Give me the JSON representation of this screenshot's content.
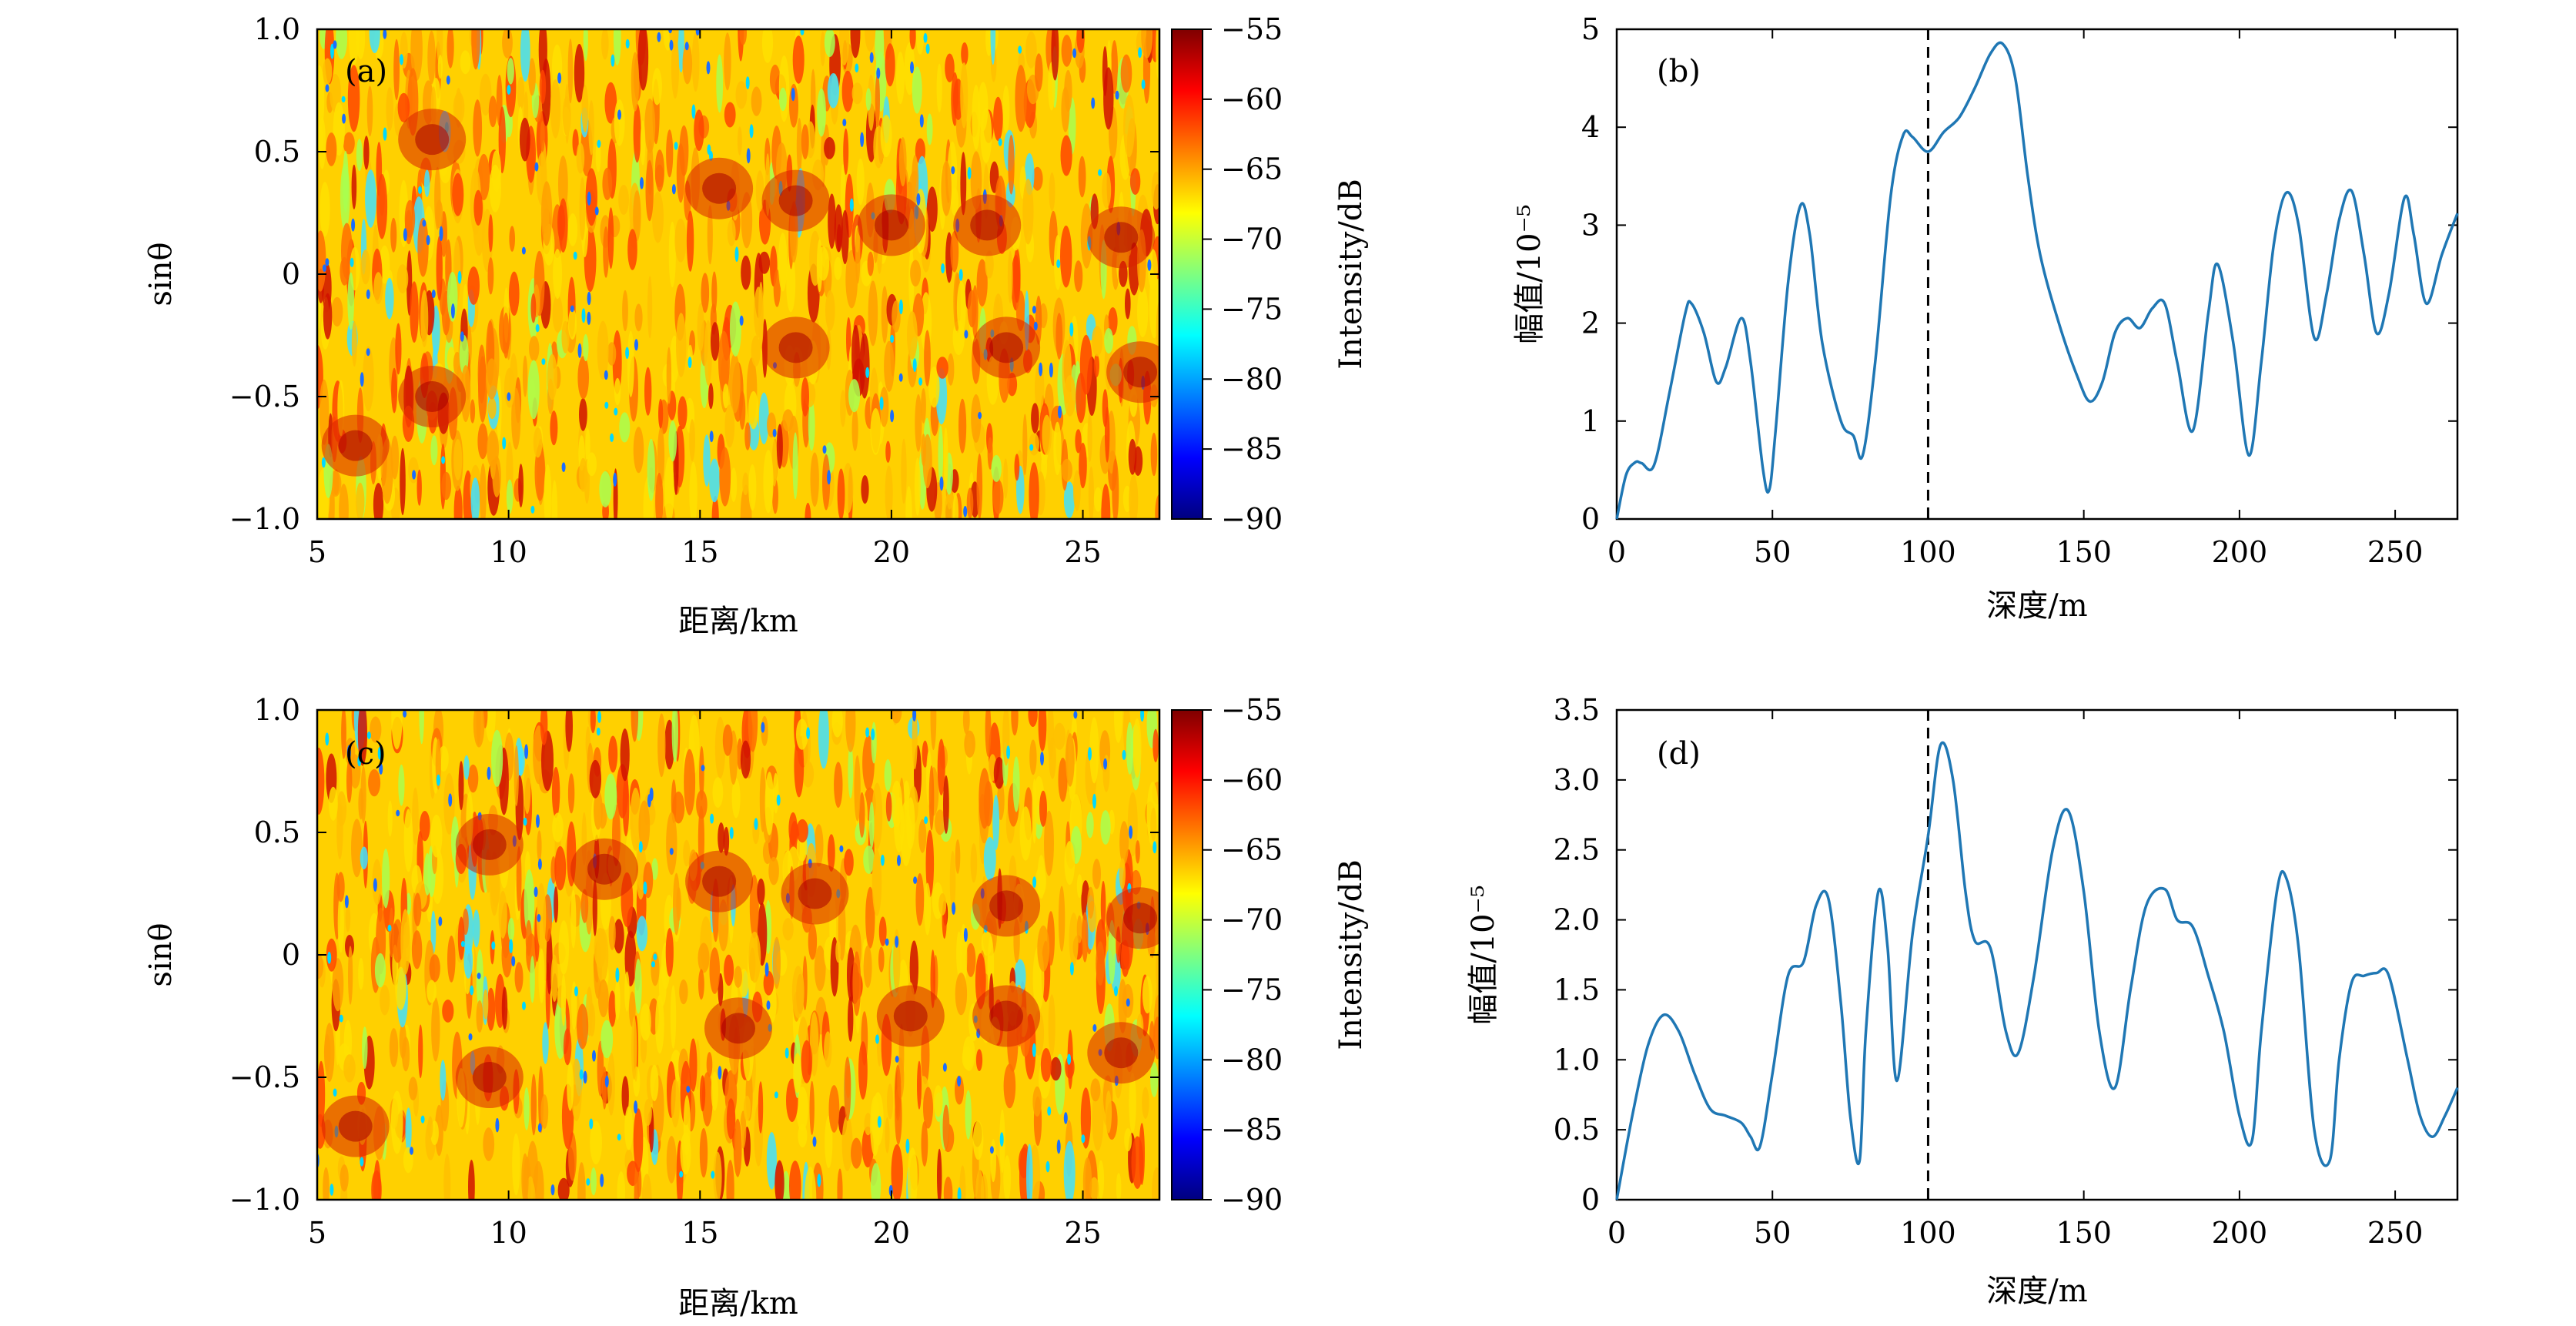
{
  "figure": {
    "panels": [
      "(a)",
      "(b)",
      "(c)",
      "(d)"
    ]
  },
  "chart_data": [
    {
      "id": "a",
      "type": "heatmap",
      "panel_label": "(a)",
      "xlabel": "距离/km",
      "ylabel": "sinθ",
      "xlim": [
        5,
        27
      ],
      "ylim": [
        -1.0,
        1.0
      ],
      "x_ticks": [
        "5",
        "10",
        "15",
        "20",
        "25"
      ],
      "y_ticks": [
        "−1.0",
        "−0.5",
        "0",
        "0.5",
        "1.0"
      ],
      "colorbar": {
        "label": "Intensity/dB",
        "range": [
          -90,
          -55
        ],
        "ticks": [
          "−55",
          "−60",
          "−65",
          "−70",
          "−75",
          "−80",
          "−85",
          "−90"
        ],
        "colormap": [
          "#00007f",
          "#0000ff",
          "#007fff",
          "#00ffff",
          "#7fff7f",
          "#ffff00",
          "#ff7f00",
          "#ff0000",
          "#7f0000"
        ]
      },
      "hotspots": [
        {
          "x": 6.0,
          "y": -0.7
        },
        {
          "x": 8.0,
          "y": 0.55
        },
        {
          "x": 8.0,
          "y": -0.5
        },
        {
          "x": 15.5,
          "y": 0.35
        },
        {
          "x": 17.5,
          "y": 0.3
        },
        {
          "x": 17.5,
          "y": -0.3
        },
        {
          "x": 20.0,
          "y": 0.2
        },
        {
          "x": 22.5,
          "y": 0.2
        },
        {
          "x": 23.0,
          "y": -0.3
        },
        {
          "x": 26.0,
          "y": 0.15
        },
        {
          "x": 26.5,
          "y": -0.4
        }
      ]
    },
    {
      "id": "b",
      "type": "line",
      "panel_label": "(b)",
      "xlabel": "深度/m",
      "ylabel": "幅值/10⁻⁵",
      "xlim": [
        0,
        270
      ],
      "ylim": [
        0,
        5
      ],
      "x_ticks": [
        0,
        50,
        100,
        150,
        200,
        250
      ],
      "y_ticks": [
        0,
        1,
        2,
        3,
        4,
        5
      ],
      "y_tick_labels": [
        "0",
        "1",
        "2",
        "3",
        "4",
        "5"
      ],
      "vline": 100,
      "series": [
        {
          "x": [
            0,
            3,
            6,
            8,
            12,
            17,
            22,
            24,
            28,
            32,
            35,
            40,
            43,
            47,
            49,
            51,
            55,
            59,
            62,
            66,
            72,
            76,
            79,
            83,
            88,
            92,
            95,
            100,
            105,
            110,
            115,
            120,
            124,
            128,
            132,
            136,
            142,
            148,
            152,
            156,
            160,
            164,
            168,
            172,
            176,
            180,
            185,
            190,
            193,
            198,
            203,
            207,
            211,
            215,
            219,
            224,
            228,
            232,
            236,
            240,
            244,
            248,
            253,
            256,
            260,
            265,
            270
          ],
          "y": [
            0,
            0.45,
            0.58,
            0.57,
            0.55,
            1.3,
            2.1,
            2.2,
            1.9,
            1.4,
            1.55,
            2.05,
            1.6,
            0.5,
            0.3,
            0.9,
            2.4,
            3.2,
            2.9,
            1.8,
            1.0,
            0.85,
            0.65,
            1.6,
            3.3,
            3.92,
            3.9,
            3.75,
            3.95,
            4.1,
            4.4,
            4.75,
            4.85,
            4.5,
            3.5,
            2.7,
            2.0,
            1.45,
            1.2,
            1.4,
            1.9,
            2.05,
            1.95,
            2.15,
            2.2,
            1.6,
            0.9,
            2.1,
            2.6,
            1.8,
            0.65,
            1.6,
            2.8,
            3.33,
            3.0,
            1.85,
            2.3,
            3.05,
            3.35,
            2.7,
            1.9,
            2.3,
            3.28,
            2.9,
            2.2,
            2.7,
            3.12
          ]
        }
      ]
    },
    {
      "id": "c",
      "type": "heatmap",
      "panel_label": "(c)",
      "xlabel": "距离/km",
      "ylabel": "sinθ",
      "xlim": [
        5,
        27
      ],
      "ylim": [
        -1.0,
        1.0
      ],
      "x_ticks": [
        "5",
        "10",
        "15",
        "20",
        "25"
      ],
      "y_ticks": [
        "−1.0",
        "−0.5",
        "0",
        "0.5",
        "1.0"
      ],
      "colorbar": {
        "label": "Intensity/dB",
        "range": [
          -90,
          -55
        ],
        "ticks": [
          "−55",
          "−60",
          "−65",
          "−70",
          "−75",
          "−80",
          "−85",
          "−90"
        ],
        "colormap": [
          "#00007f",
          "#0000ff",
          "#007fff",
          "#00ffff",
          "#7fff7f",
          "#ffff00",
          "#ff7f00",
          "#ff0000",
          "#7f0000"
        ]
      },
      "hotspots": [
        {
          "x": 6.0,
          "y": -0.7
        },
        {
          "x": 9.5,
          "y": 0.45
        },
        {
          "x": 9.5,
          "y": -0.5
        },
        {
          "x": 12.5,
          "y": 0.35
        },
        {
          "x": 15.5,
          "y": 0.3
        },
        {
          "x": 16.0,
          "y": -0.3
        },
        {
          "x": 18.0,
          "y": 0.25
        },
        {
          "x": 20.5,
          "y": -0.25
        },
        {
          "x": 23.0,
          "y": 0.2
        },
        {
          "x": 23.0,
          "y": -0.25
        },
        {
          "x": 26.5,
          "y": 0.15
        },
        {
          "x": 26.0,
          "y": -0.4
        }
      ]
    },
    {
      "id": "d",
      "type": "line",
      "panel_label": "(d)",
      "xlabel": "深度/m",
      "ylabel": "幅值/10⁻⁵",
      "xlim": [
        0,
        270
      ],
      "ylim": [
        0,
        3.5
      ],
      "x_ticks": [
        0,
        50,
        100,
        150,
        200,
        250
      ],
      "y_ticks": [
        0,
        0.5,
        1.0,
        1.5,
        2.0,
        2.5,
        3.0,
        3.5
      ],
      "y_tick_labels": [
        "0",
        "0.5",
        "1.0",
        "1.5",
        "2.0",
        "2.5",
        "3.0",
        "3.5"
      ],
      "vline": 100,
      "series": [
        {
          "x": [
            0,
            5,
            10,
            15,
            20,
            25,
            30,
            35,
            40,
            43,
            46,
            50,
            55,
            60,
            64,
            68,
            72,
            75,
            78,
            80,
            84,
            87,
            90,
            95,
            100,
            104,
            108,
            112,
            115,
            120,
            125,
            129,
            134,
            140,
            145,
            150,
            155,
            160,
            165,
            170,
            176,
            180,
            185,
            190,
            195,
            200,
            204,
            207,
            212,
            215,
            219,
            224,
            229,
            232,
            236,
            240,
            244,
            248,
            254,
            258,
            262,
            266,
            270
          ],
          "y": [
            0,
            0.6,
            1.1,
            1.32,
            1.2,
            0.9,
            0.65,
            0.6,
            0.55,
            0.45,
            0.38,
            0.9,
            1.6,
            1.7,
            2.1,
            2.15,
            1.4,
            0.6,
            0.28,
            1.2,
            2.2,
            1.8,
            0.85,
            1.9,
            2.6,
            3.25,
            3.0,
            2.2,
            1.85,
            1.8,
            1.2,
            1.05,
            1.6,
            2.5,
            2.78,
            2.2,
            1.2,
            0.8,
            1.5,
            2.1,
            2.22,
            2.0,
            1.95,
            1.6,
            1.2,
            0.6,
            0.42,
            1.2,
            2.2,
            2.3,
            1.8,
            0.5,
            0.28,
            1.0,
            1.55,
            1.6,
            1.62,
            1.6,
            1.0,
            0.6,
            0.45,
            0.6,
            0.8
          ]
        }
      ]
    }
  ]
}
